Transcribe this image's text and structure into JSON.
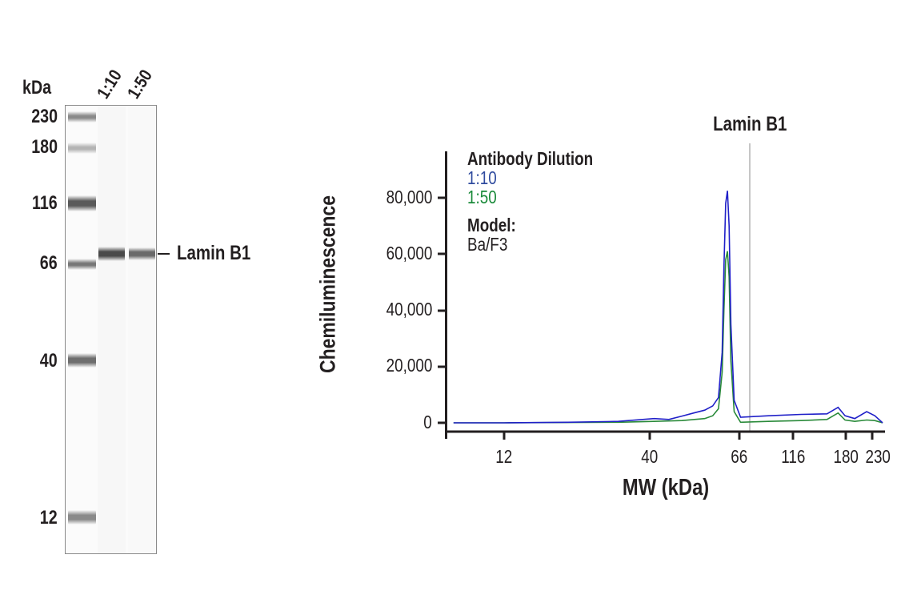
{
  "blot": {
    "unit_label": "kDa",
    "lanes": [
      "1:10",
      "1:50"
    ],
    "markers": [
      "230",
      "180",
      "116",
      "66",
      "40",
      "12"
    ],
    "band_label": "Lamin B1"
  },
  "legend": {
    "title": "Antibody Dilution",
    "series": [
      {
        "label": "1:10",
        "color": "#2e4a9e"
      },
      {
        "label": "1:50",
        "color": "#1a8a3a"
      }
    ],
    "model_title": "Model:",
    "model_value": "Ba/F3"
  },
  "chart_data": {
    "type": "line",
    "title": "Lamin B1",
    "xlabel": "MW (kDa)",
    "ylabel": "Chemiluminescence",
    "xscale": "log",
    "x_ticks": [
      "12",
      "40",
      "66",
      "116",
      "180",
      "230"
    ],
    "y_ticks": [
      "0",
      "20,000",
      "40,000",
      "60,000",
      "80,000"
    ],
    "ylim": [
      0,
      90000
    ],
    "grid": false,
    "legend_position": "top-left",
    "annotation": {
      "label": "Lamin B1",
      "x_kDa": 72
    },
    "series": [
      {
        "name": "1:10",
        "color": "#2020c8",
        "x": [
          8,
          12,
          20,
          30,
          40,
          45,
          50,
          55,
          60,
          64,
          67,
          69,
          70,
          71,
          72,
          73,
          74,
          76,
          80,
          100,
          130,
          160,
          175,
          185,
          200,
          220,
          235,
          250
        ],
        "y": [
          0,
          0,
          200,
          500,
          1500,
          1200,
          2400,
          3500,
          4500,
          6000,
          9000,
          25000,
          55000,
          78000,
          82500,
          70000,
          35000,
          8000,
          2000,
          2500,
          3000,
          3200,
          5500,
          2500,
          1500,
          4000,
          2500,
          0
        ]
      },
      {
        "name": "1:50",
        "color": "#2a8a3a",
        "x": [
          8,
          12,
          20,
          30,
          40,
          50,
          60,
          64,
          67,
          69,
          70,
          71,
          72,
          73,
          74,
          76,
          80,
          100,
          130,
          160,
          175,
          185,
          200,
          220,
          235,
          250
        ],
        "y": [
          0,
          0,
          100,
          200,
          500,
          800,
          1500,
          2500,
          5000,
          18000,
          40000,
          58000,
          61000,
          52000,
          22000,
          4000,
          200,
          500,
          800,
          1200,
          3500,
          1000,
          500,
          1000,
          800,
          0
        ]
      }
    ]
  }
}
